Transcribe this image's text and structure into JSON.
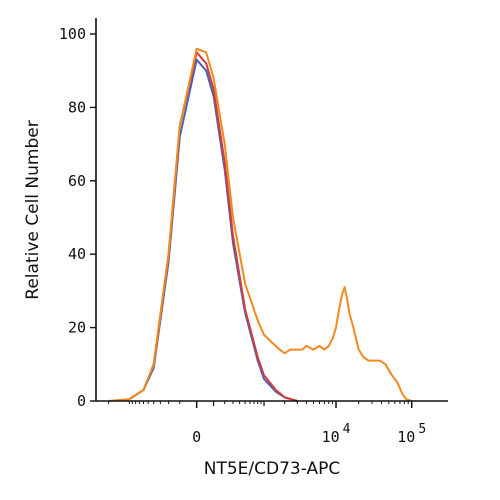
{
  "chart_data": {
    "type": "line",
    "xlabel": "NT5E/CD73-APC",
    "ylabel": "Relative Cell Number",
    "x_scale": "biexponential",
    "x_ticks": [
      {
        "value": 0,
        "label": "0"
      },
      {
        "value": 10000,
        "label": "10",
        "exp": "4"
      },
      {
        "value": 100000,
        "label": "10",
        "exp": "5"
      }
    ],
    "y_ticks": [
      0,
      20,
      40,
      60,
      80,
      100
    ],
    "ylim": [
      0,
      100
    ],
    "grid": false,
    "legend": "none",
    "series": [
      {
        "color": "#f08a1c",
        "x": [
          -2000,
          -1000,
          -600,
          -400,
          -200,
          -100,
          0,
          50,
          100,
          200,
          300,
          500,
          800,
          1000,
          1300,
          1700,
          2000,
          2400,
          3000,
          3500,
          4000,
          5000,
          6000,
          7000,
          8000,
          9000,
          10000,
          11000,
          12000,
          13000,
          14000,
          15000,
          17000,
          20000,
          23000,
          27000,
          32000,
          38000,
          45000,
          55000,
          65000,
          75000,
          85000,
          100000
        ],
        "y": [
          0,
          0.5,
          3,
          10,
          40,
          75,
          96,
          95,
          88,
          70,
          50,
          32,
          22,
          18,
          16,
          14,
          13,
          14,
          14,
          14,
          15,
          14,
          15,
          14,
          15,
          17,
          20,
          25,
          29,
          31,
          28,
          24,
          20,
          14,
          12,
          11,
          11,
          11,
          10,
          7,
          5,
          2,
          0.5,
          0
        ]
      },
      {
        "color": "#d63a3a",
        "x": [
          -1000,
          -600,
          -400,
          -200,
          -100,
          0,
          50,
          100,
          200,
          300,
          500,
          800,
          1000,
          1500,
          2000,
          3000
        ],
        "y": [
          0.5,
          3,
          10,
          40,
          75,
          95,
          92,
          85,
          65,
          45,
          25,
          12,
          7,
          3,
          1,
          0
        ]
      },
      {
        "color": "#4a64b5",
        "x": [
          -1000,
          -600,
          -400,
          -200,
          -100,
          0,
          50,
          100,
          200,
          300,
          500,
          800,
          1000,
          1500,
          2000,
          3000
        ],
        "y": [
          0.5,
          3,
          9,
          38,
          72,
          93,
          90,
          83,
          63,
          43,
          24,
          11,
          6,
          2.5,
          1,
          0
        ]
      }
    ]
  }
}
